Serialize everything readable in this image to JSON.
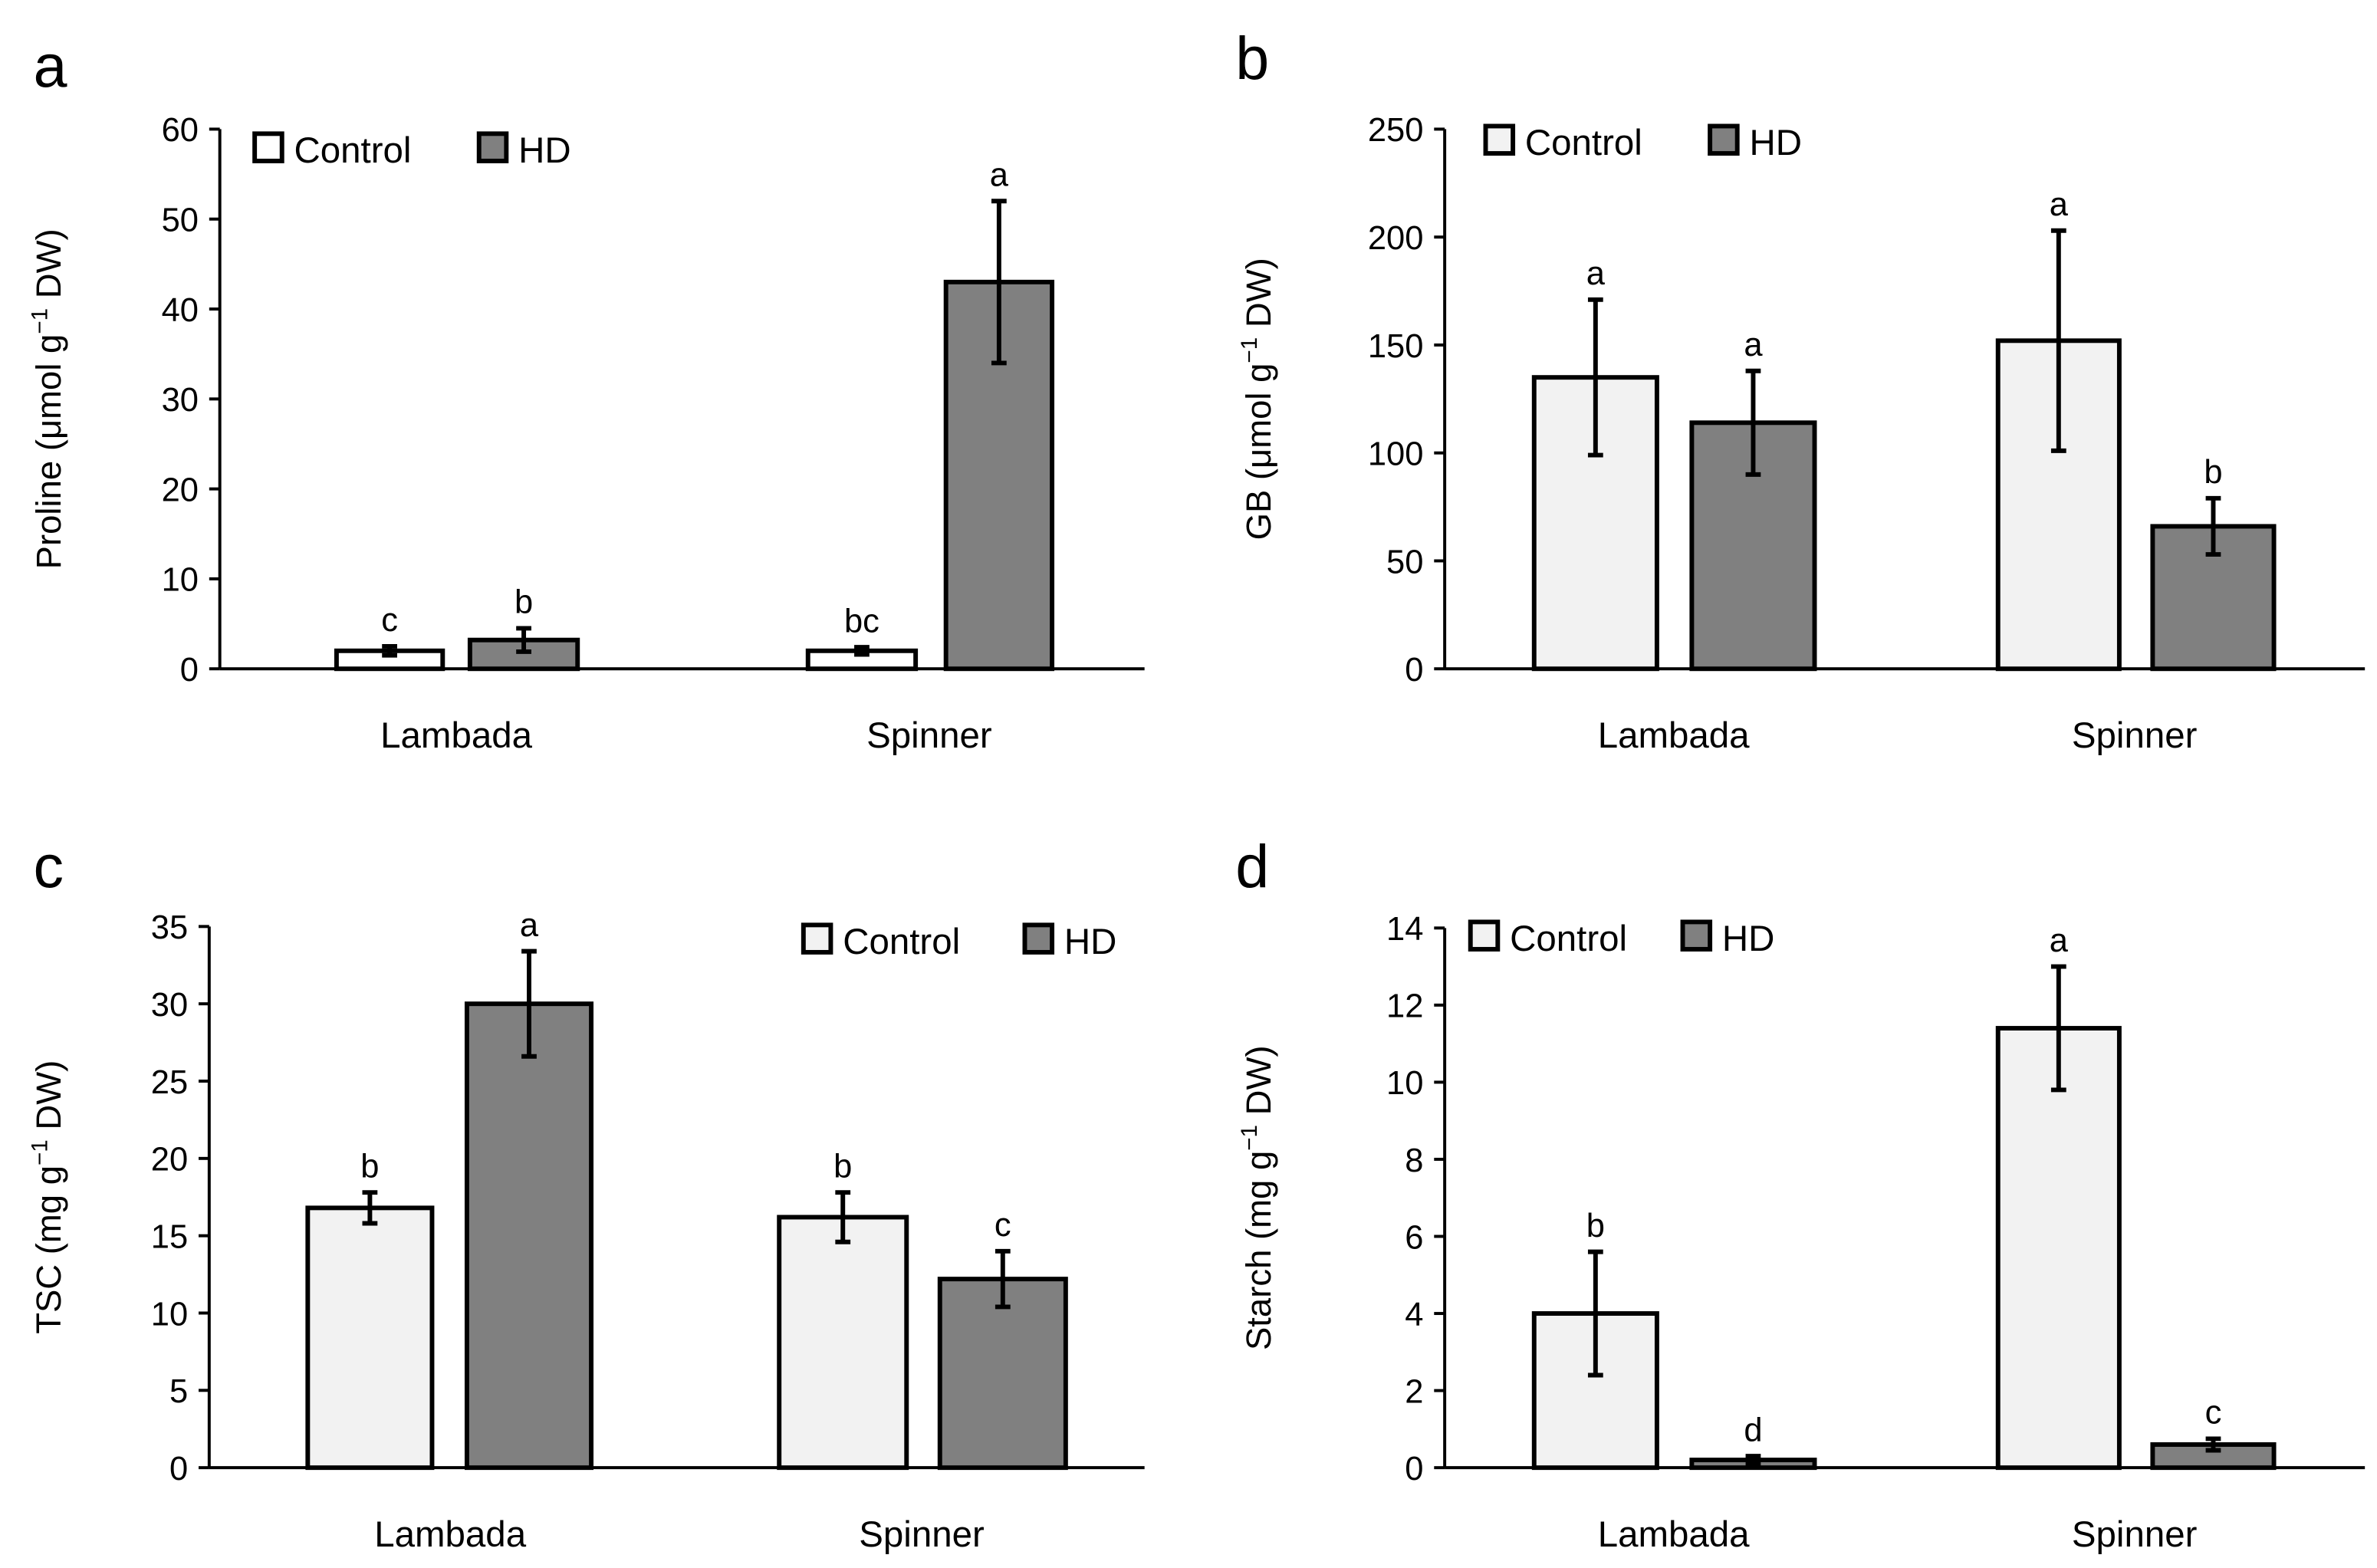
{
  "legend": {
    "control": "Control",
    "hd": "HD"
  },
  "colors": {
    "control": "#f2f2f2",
    "hd": "#808080",
    "axis": "#000000"
  },
  "chart_data": [
    {
      "panel": "a",
      "type": "bar",
      "ylabel_pre": "Proline (μmol  g",
      "ylabel_sup": "−1",
      "ylabel_post": " DW)",
      "categories": [
        "Lambada",
        "Spinner"
      ],
      "ylim": [
        0,
        60
      ],
      "yticks": [
        0,
        10,
        20,
        30,
        40,
        50,
        60
      ],
      "legend_position": "top-left",
      "series": [
        {
          "name": "Control",
          "values": [
            2.0,
            2.0
          ],
          "errors": [
            0.5,
            0.4
          ],
          "letters": [
            "c",
            "bc"
          ]
        },
        {
          "name": "HD",
          "values": [
            3.2,
            43.0
          ],
          "errors": [
            1.3,
            9.0
          ],
          "letters": [
            "b",
            "a"
          ]
        }
      ]
    },
    {
      "panel": "b",
      "type": "bar",
      "ylabel_pre": "GB (μmol  g",
      "ylabel_sup": "−1",
      "ylabel_post": " DW)",
      "categories": [
        "Lambada",
        "Spinner"
      ],
      "ylim": [
        0,
        250
      ],
      "yticks": [
        0,
        50,
        100,
        150,
        200,
        250
      ],
      "legend_position": "top-left",
      "series": [
        {
          "name": "Control",
          "values": [
            135,
            152
          ],
          "errors": [
            36,
            51
          ],
          "letters": [
            "a",
            "a"
          ]
        },
        {
          "name": "HD",
          "values": [
            114,
            66
          ],
          "errors": [
            24,
            13
          ],
          "letters": [
            "a",
            "b"
          ]
        }
      ]
    },
    {
      "panel": "c",
      "type": "bar",
      "ylabel_pre": "TSC (mg  g",
      "ylabel_sup": "−1",
      "ylabel_post": " DW)",
      "categories": [
        "Lambada",
        "Spinner"
      ],
      "ylim": [
        0,
        35
      ],
      "yticks": [
        0,
        5,
        10,
        15,
        20,
        25,
        30,
        35
      ],
      "legend_position": "top-right",
      "series": [
        {
          "name": "Control",
          "values": [
            16.8,
            16.2
          ],
          "errors": [
            1.0,
            1.6
          ],
          "letters": [
            "b",
            "b"
          ]
        },
        {
          "name": "HD",
          "values": [
            30.0,
            12.2
          ],
          "errors": [
            3.4,
            1.8
          ],
          "letters": [
            "a",
            "c"
          ]
        }
      ]
    },
    {
      "panel": "d",
      "type": "bar",
      "ylabel_pre": "Starch (mg  g",
      "ylabel_sup": "−1",
      "ylabel_post": " DW)",
      "categories": [
        "Lambada",
        "Spinner"
      ],
      "ylim": [
        0,
        14
      ],
      "yticks": [
        0,
        2,
        4,
        6,
        8,
        10,
        12,
        14
      ],
      "legend_position": "top-left",
      "series": [
        {
          "name": "Control",
          "values": [
            4.0,
            11.4
          ],
          "errors": [
            1.6,
            1.6
          ],
          "letters": [
            "b",
            "a"
          ]
        },
        {
          "name": "HD",
          "values": [
            0.2,
            0.6
          ],
          "errors": [
            0.1,
            0.15
          ],
          "letters": [
            "d",
            "c"
          ]
        }
      ]
    }
  ]
}
